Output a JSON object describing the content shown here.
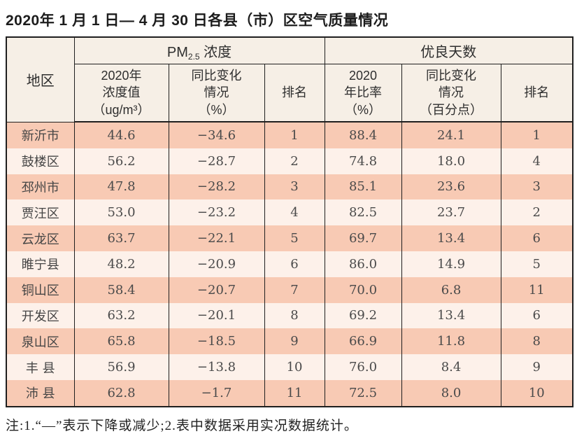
{
  "title": "2020年 1 月 1 日— 4 月 30 日各县（市）区空气质量情况",
  "table": {
    "header": {
      "region": "地区",
      "pm25_group": {
        "prefix": "PM",
        "sub": "2.5",
        "suffix": " 浓度"
      },
      "good_days_group": "优良天数",
      "pm25_cols": {
        "value": "2020年\n浓度值\n（ug/m³）",
        "change": "同比变化\n情况\n（%）",
        "rank": "排名"
      },
      "good_cols": {
        "ratio": "2020\n年比率\n（%）",
        "change": "同比变化\n情况\n（百分点）",
        "rank": "排名"
      }
    },
    "rows": [
      {
        "region": "新沂市",
        "pm25_value": "44.6",
        "pm25_change": "−34.6",
        "pm25_rank": "1",
        "good_ratio": "88.4",
        "good_change": "24.1",
        "good_rank": "1"
      },
      {
        "region": "鼓楼区",
        "pm25_value": "56.2",
        "pm25_change": "−28.7",
        "pm25_rank": "2",
        "good_ratio": "74.8",
        "good_change": "18.0",
        "good_rank": "4"
      },
      {
        "region": "邳州市",
        "pm25_value": "47.8",
        "pm25_change": "−28.2",
        "pm25_rank": "3",
        "good_ratio": "85.1",
        "good_change": "23.6",
        "good_rank": "3"
      },
      {
        "region": "贾汪区",
        "pm25_value": "53.0",
        "pm25_change": "−23.2",
        "pm25_rank": "4",
        "good_ratio": "82.5",
        "good_change": "23.7",
        "good_rank": "2"
      },
      {
        "region": "云龙区",
        "pm25_value": "63.7",
        "pm25_change": "−22.1",
        "pm25_rank": "5",
        "good_ratio": "69.7",
        "good_change": "13.4",
        "good_rank": "6"
      },
      {
        "region": "睢宁县",
        "pm25_value": "48.2",
        "pm25_change": "−20.9",
        "pm25_rank": "6",
        "good_ratio": "86.0",
        "good_change": "14.9",
        "good_rank": "5"
      },
      {
        "region": "铜山区",
        "pm25_value": "58.4",
        "pm25_change": "−20.7",
        "pm25_rank": "7",
        "good_ratio": "70.0",
        "good_change": "6.8",
        "good_rank": "11"
      },
      {
        "region": "开发区",
        "pm25_value": "63.2",
        "pm25_change": "−20.1",
        "pm25_rank": "8",
        "good_ratio": "69.2",
        "good_change": "13.4",
        "good_rank": "6"
      },
      {
        "region": "泉山区",
        "pm25_value": "65.8",
        "pm25_change": "−18.5",
        "pm25_rank": "9",
        "good_ratio": "66.9",
        "good_change": "11.8",
        "good_rank": "8"
      },
      {
        "region": "丰 县",
        "pm25_value": "56.9",
        "pm25_change": "−13.8",
        "pm25_rank": "10",
        "good_ratio": "76.0",
        "good_change": "8.4",
        "good_rank": "9"
      },
      {
        "region": "沛 县",
        "pm25_value": "62.8",
        "pm25_change": "−1.7",
        "pm25_rank": "11",
        "good_ratio": "72.5",
        "good_change": "8.0",
        "good_rank": "10"
      }
    ]
  },
  "note": "注:1.“—”表示下降或减少;2.表中数据采用实况数据统计。",
  "colors": {
    "row_salmon": "#f8cab4",
    "row_light": "#fdf1ea",
    "header_bg": "#f6efe6",
    "border": "#1f1f1f"
  }
}
